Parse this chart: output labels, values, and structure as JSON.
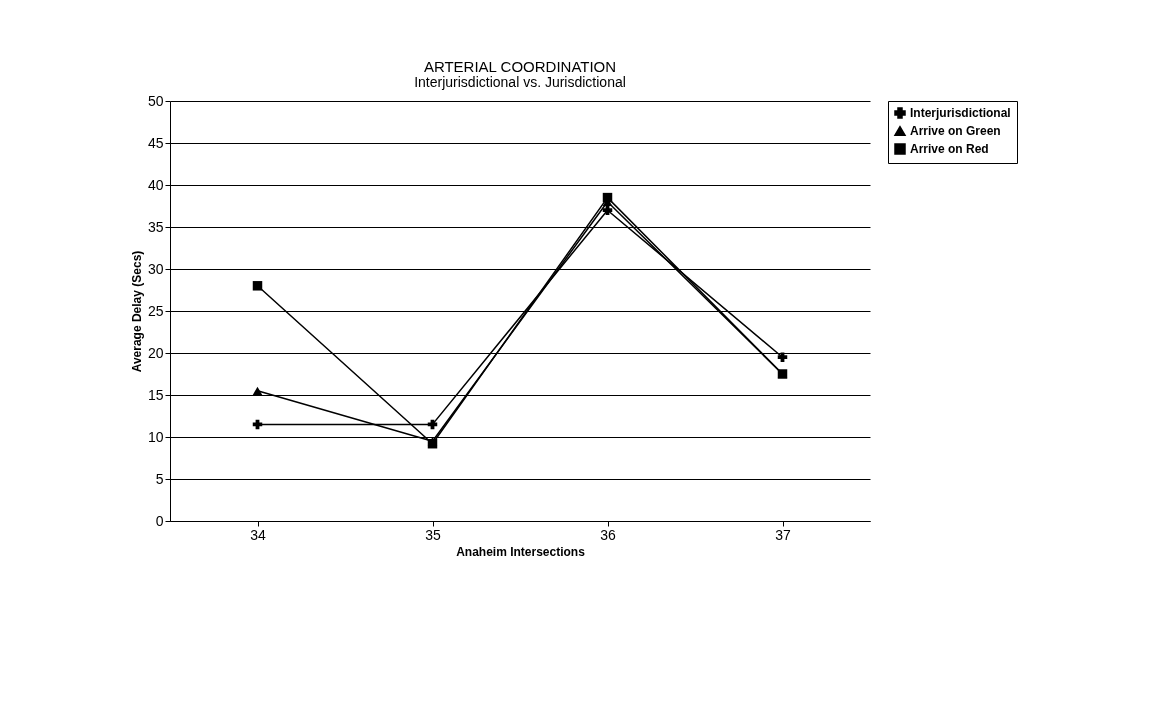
{
  "chart_data": {
    "type": "line",
    "title": "ARTERIAL COORDINATION",
    "subtitle": "Interjurisdictional vs. Jurisdictional",
    "xlabel": "Anaheim Intersections",
    "ylabel": "Average Delay (Secs)",
    "categories": [
      "34",
      "35",
      "36",
      "37"
    ],
    "series": [
      {
        "name": "Interjurisdictional",
        "color": "#000000",
        "marker": "cross",
        "values": [
          11.5,
          11.5,
          37,
          19.5
        ]
      },
      {
        "name": "Arrive on Green",
        "color": "#000000",
        "marker": "triangle",
        "values": [
          15.5,
          9.5,
          38,
          17.5
        ]
      },
      {
        "name": "Arrive on Red",
        "color": "#000000",
        "marker": "square",
        "values": [
          28,
          9.2,
          38.5,
          17.5
        ]
      }
    ],
    "ylim": [
      0,
      50
    ],
    "yticks": [
      0,
      5,
      10,
      15,
      20,
      25,
      30,
      35,
      40,
      45,
      50
    ],
    "grid": "y",
    "legend": "top right",
    "line_style": "solid"
  }
}
